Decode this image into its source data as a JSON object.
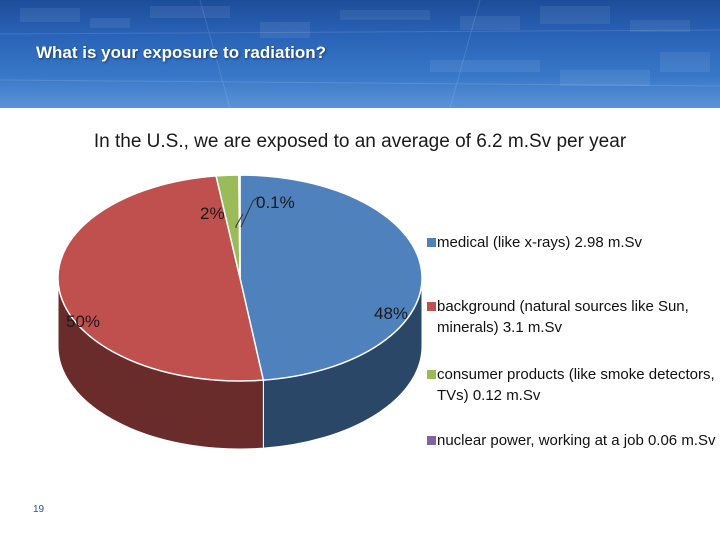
{
  "header": {
    "title": "What is your exposure to radiation?"
  },
  "subtitle": "In the U.S., we are exposed to an average of 6.2 m.Sv per year",
  "colors": {
    "banner": "#2a64b8",
    "medical": "#4f81bd",
    "background": "#c0504d",
    "consumer": "#9bbb59",
    "nuclear": "#8064a2"
  },
  "chart_data": {
    "type": "pie",
    "title": "",
    "three_d": true,
    "legend_position": "right",
    "slices": [
      {
        "name": "medical (like x-rays) 2.98 m.Sv",
        "value": 48,
        "label": "48%",
        "color": "#4f81bd"
      },
      {
        "name": "background (natural sources like Sun, minerals) 3.1 m.Sv",
        "value": 50,
        "label": "50%",
        "color": "#c0504d"
      },
      {
        "name": "consumer products (like smoke detectors, TVs) 0.12 m.Sv",
        "value": 2,
        "label": "2%",
        "color": "#9bbb59"
      },
      {
        "name": "nuclear power, working at a job 0.06 m.Sv",
        "value": 0.1,
        "label": "0.1%",
        "color": "#8064a2"
      }
    ]
  },
  "footer": {
    "page_number": "19"
  }
}
